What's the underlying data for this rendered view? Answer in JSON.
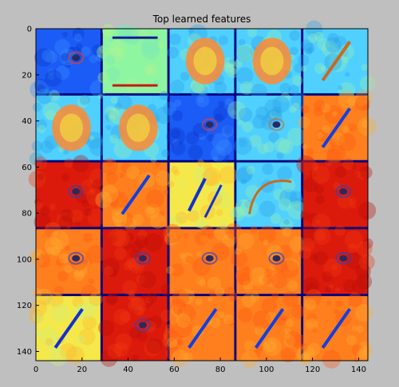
{
  "chart_data": {
    "type": "heatmap",
    "title": "Top learned features",
    "xlabel": "",
    "ylabel": "",
    "xlim": [
      0,
      144
    ],
    "ylim": [
      144,
      0
    ],
    "x_ticks": [
      "0",
      "20",
      "40",
      "60",
      "80",
      "100",
      "120",
      "140"
    ],
    "y_ticks": [
      "0",
      "20",
      "40",
      "60",
      "80",
      "100",
      "120",
      "140"
    ],
    "grid": {
      "rows": 5,
      "cols": 5,
      "tile_size": 28,
      "separator": 1
    },
    "colormap": "jet",
    "colormap_stops": [
      "#00007f",
      "#0000ff",
      "#00ffff",
      "#ffff00",
      "#ff0000",
      "#7f0000"
    ],
    "separator_color": "#00007f",
    "tiles": [
      {
        "row": 0,
        "col": 0,
        "background": "blue",
        "feature": "spot"
      },
      {
        "row": 0,
        "col": 1,
        "background": "light green",
        "feature": "horizontal stripes"
      },
      {
        "row": 0,
        "col": 2,
        "background": "cyan",
        "feature": "blob"
      },
      {
        "row": 0,
        "col": 3,
        "background": "cyan",
        "feature": "blob"
      },
      {
        "row": 0,
        "col": 4,
        "background": "cyan",
        "feature": "diagonal stroke"
      },
      {
        "row": 1,
        "col": 0,
        "background": "cyan",
        "feature": "blob"
      },
      {
        "row": 1,
        "col": 1,
        "background": "cyan",
        "feature": "blob"
      },
      {
        "row": 1,
        "col": 2,
        "background": "blue",
        "feature": "spot"
      },
      {
        "row": 1,
        "col": 3,
        "background": "cyan",
        "feature": "spot"
      },
      {
        "row": 1,
        "col": 4,
        "background": "orange",
        "feature": "diagonal stroke"
      },
      {
        "row": 2,
        "col": 0,
        "background": "red",
        "feature": "spot"
      },
      {
        "row": 2,
        "col": 1,
        "background": "orange",
        "feature": "diagonal stroke"
      },
      {
        "row": 2,
        "col": 2,
        "background": "yellow",
        "feature": "diagonal strokes"
      },
      {
        "row": 2,
        "col": 3,
        "background": "cyan",
        "feature": "curved stroke"
      },
      {
        "row": 2,
        "col": 4,
        "background": "red",
        "feature": "spot"
      },
      {
        "row": 3,
        "col": 0,
        "background": "orange",
        "feature": "spot"
      },
      {
        "row": 3,
        "col": 1,
        "background": "red",
        "feature": "spot"
      },
      {
        "row": 3,
        "col": 2,
        "background": "orange",
        "feature": "spot"
      },
      {
        "row": 3,
        "col": 3,
        "background": "orange",
        "feature": "spot"
      },
      {
        "row": 3,
        "col": 4,
        "background": "red",
        "feature": "spot"
      },
      {
        "row": 4,
        "col": 0,
        "background": "yellow",
        "feature": "diagonal stroke"
      },
      {
        "row": 4,
        "col": 1,
        "background": "red",
        "feature": "spot"
      },
      {
        "row": 4,
        "col": 2,
        "background": "orange",
        "feature": "diagonal stroke"
      },
      {
        "row": 4,
        "col": 3,
        "background": "orange",
        "feature": "diagonal stroke"
      },
      {
        "row": 4,
        "col": 4,
        "background": "orange",
        "feature": "diagonal stroke"
      }
    ]
  }
}
